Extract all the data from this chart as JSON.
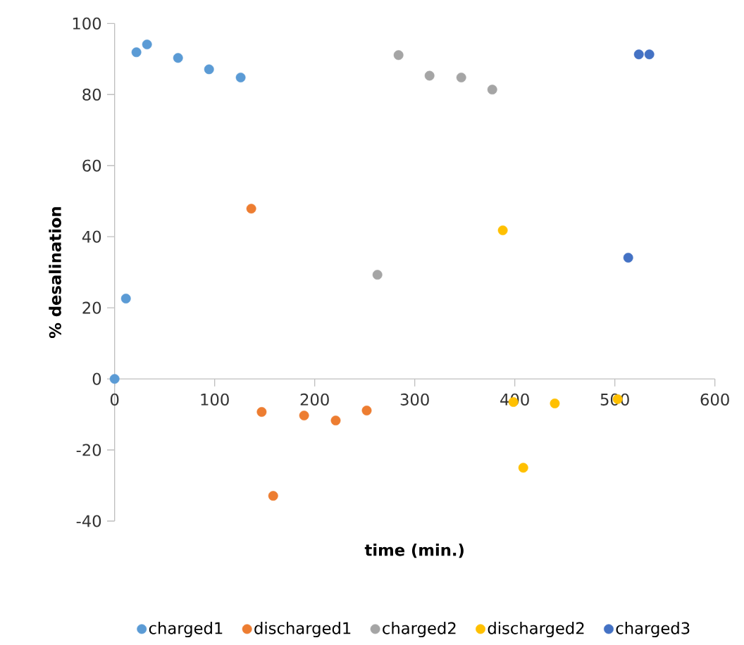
{
  "chart_data": {
    "type": "scatter",
    "xlabel": "time (min.)",
    "ylabel": "% desalination",
    "xlim": [
      0,
      600
    ],
    "ylim": [
      -40,
      100
    ],
    "xticks": [
      0,
      100,
      200,
      300,
      400,
      500,
      600
    ],
    "yticks": [
      -40,
      -20,
      0,
      20,
      40,
      60,
      80,
      100
    ],
    "grid": false,
    "legend": "bottom",
    "series": [
      {
        "name": "charged1",
        "color": "#5b9bd5",
        "x": [
          0,
          11.3,
          21.8,
          32.4,
          63.4,
          94.4,
          126
        ],
        "values": [
          0,
          22.6,
          91.9,
          94.1,
          90.3,
          87.1,
          84.8
        ]
      },
      {
        "name": "discharged1",
        "color": "#ed7d31",
        "x": [
          136.6,
          147,
          158.5,
          189.4,
          221,
          252
        ],
        "values": [
          47.9,
          -9.3,
          -32.9,
          -10.3,
          -11.7,
          -8.9
        ]
      },
      {
        "name": "charged2",
        "color": "#a5a5a5",
        "x": [
          262.7,
          283.8,
          314.8,
          346.5,
          377.5
        ],
        "values": [
          29.3,
          91.1,
          85.3,
          84.8,
          81.4
        ]
      },
      {
        "name": "discharged2",
        "color": "#ffc000",
        "x": [
          388,
          398.6,
          408.5,
          440,
          502.8
        ],
        "values": [
          41.8,
          -6.5,
          -25,
          -6.9,
          -5.7
        ]
      },
      {
        "name": "charged3",
        "color": "#4472c4",
        "x": [
          513.4,
          524,
          534.5
        ],
        "values": [
          34.1,
          91.3,
          91.3
        ]
      }
    ]
  }
}
